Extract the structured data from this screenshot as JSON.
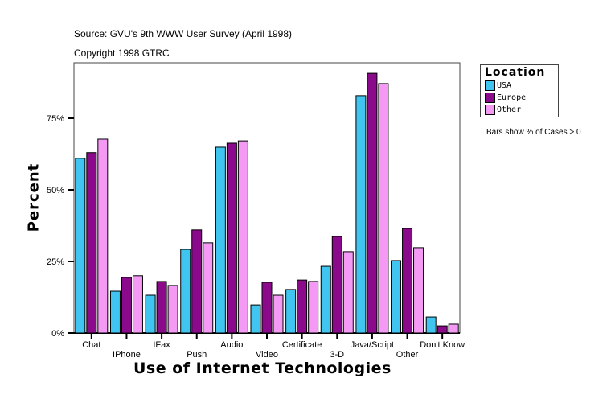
{
  "chart_data": {
    "type": "bar",
    "title": "Source: GVU's 9th WWW User Survey (April 1998)",
    "subtitle": "Copyright 1998 GTRC",
    "xlabel": "Use of Internet Technologies",
    "ylabel": "Percent",
    "ylim": [
      0,
      100
    ],
    "yticks": [
      0,
      25,
      50,
      75
    ],
    "ytick_labels": [
      "0%",
      "25%",
      "50%",
      "75%"
    ],
    "grid": false,
    "note": "Bars show % of Cases > 0",
    "legend": {
      "title": "Location",
      "placement": "top-right"
    },
    "categories": [
      "Chat",
      "IPhone",
      "IFax",
      "Push",
      "Audio",
      "Video",
      "Certificate",
      "3-D",
      "Java/Script",
      "Other",
      "Don't Know"
    ],
    "series": [
      {
        "name": "USA",
        "color": "#40c4f0",
        "values": [
          61.0,
          14.6,
          13.2,
          29.2,
          64.9,
          9.8,
          15.2,
          23.3,
          82.9,
          25.3,
          5.6
        ]
      },
      {
        "name": "Europe",
        "color": "#8b0a8b",
        "values": [
          63.0,
          19.4,
          18.0,
          36.0,
          66.3,
          17.7,
          18.5,
          33.7,
          90.7,
          36.5,
          2.5
        ]
      },
      {
        "name": "Other",
        "color": "#f49af4",
        "values": [
          67.7,
          20.0,
          16.6,
          31.5,
          67.1,
          13.2,
          18.0,
          28.4,
          87.1,
          29.8,
          3.1
        ]
      }
    ]
  }
}
